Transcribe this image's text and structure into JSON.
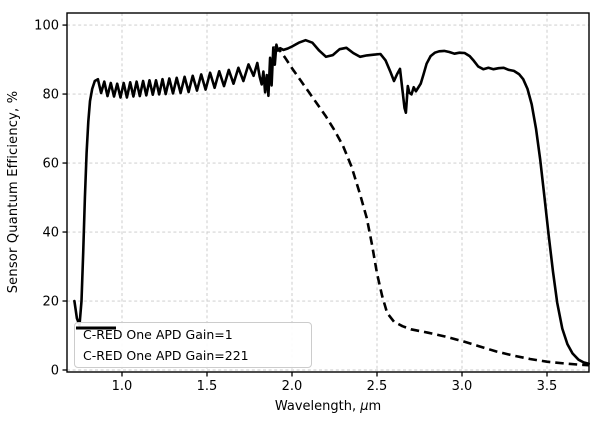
{
  "figure": {
    "background": "#ffffff",
    "axes_frame_color": "#000000",
    "grid_color": "#c9c9c9",
    "line_color": "#000000"
  },
  "axes": {
    "ylabel": "Sensor Quantum Efficiency, %",
    "xlabel_prefix": "Wavelength, ",
    "xlabel_mu": "μ",
    "xlabel_suffix": "m"
  },
  "legend": {
    "entries": [
      {
        "label": "C-RED One APD Gain=1",
        "style": "solid"
      },
      {
        "label": "C-RED One APD Gain=221",
        "style": "dashed"
      }
    ]
  },
  "chart_data": {
    "type": "line",
    "title": "",
    "xlabel": "Wavelength, μm",
    "ylabel": "Sensor Quantum Efficiency, %",
    "xlim": [
      0.6765,
      3.747
    ],
    "ylim": [
      -0.58,
      103.5
    ],
    "xticks": [
      1.0,
      1.5,
      2.0,
      2.5,
      3.0,
      3.5
    ],
    "xtick_labels": [
      "1.0",
      "1.5",
      "2.0",
      "2.5",
      "3.0",
      "3.5"
    ],
    "yticks": [
      0,
      20,
      40,
      60,
      80,
      100
    ],
    "ytick_labels": [
      "0",
      "20",
      "40",
      "60",
      "80",
      "100"
    ],
    "grid": true,
    "grid_style": "dashed",
    "legend_position": "lower left",
    "series": [
      {
        "name": "C-RED One APD Gain=1",
        "style": "solid",
        "color": "#000000",
        "points": [
          [
            0.72,
            20
          ],
          [
            0.735,
            15
          ],
          [
            0.75,
            13
          ],
          [
            0.762,
            20
          ],
          [
            0.772,
            34
          ],
          [
            0.782,
            50
          ],
          [
            0.792,
            63
          ],
          [
            0.802,
            72
          ],
          [
            0.812,
            78
          ],
          [
            0.825,
            81.5
          ],
          [
            0.84,
            83.8
          ],
          [
            0.858,
            84.3
          ],
          [
            0.877,
            80.3
          ],
          [
            0.896,
            83.6
          ],
          [
            0.915,
            79.4
          ],
          [
            0.934,
            83.2
          ],
          [
            0.953,
            79.3
          ],
          [
            0.972,
            83.0
          ],
          [
            0.991,
            79.0
          ],
          [
            1.01,
            83.2
          ],
          [
            1.029,
            79.0
          ],
          [
            1.048,
            83.4
          ],
          [
            1.067,
            79.3
          ],
          [
            1.086,
            83.6
          ],
          [
            1.105,
            79.4
          ],
          [
            1.124,
            83.8
          ],
          [
            1.143,
            79.6
          ],
          [
            1.162,
            84.0
          ],
          [
            1.181,
            79.8
          ],
          [
            1.2,
            84.0
          ],
          [
            1.219,
            79.9
          ],
          [
            1.238,
            84.3
          ],
          [
            1.257,
            80.0
          ],
          [
            1.278,
            84.5
          ],
          [
            1.3,
            80.2
          ],
          [
            1.322,
            84.7
          ],
          [
            1.345,
            80.3
          ],
          [
            1.368,
            85.0
          ],
          [
            1.392,
            80.6
          ],
          [
            1.416,
            85.3
          ],
          [
            1.441,
            81.0
          ],
          [
            1.466,
            85.7
          ],
          [
            1.492,
            81.3
          ],
          [
            1.518,
            86.2
          ],
          [
            1.545,
            81.8
          ],
          [
            1.572,
            86.6
          ],
          [
            1.6,
            82.3
          ],
          [
            1.628,
            87.0
          ],
          [
            1.656,
            83.0
          ],
          [
            1.685,
            87.6
          ],
          [
            1.714,
            83.8
          ],
          [
            1.744,
            88.6
          ],
          [
            1.774,
            85.3
          ],
          [
            1.796,
            89.0
          ],
          [
            1.81,
            85.0
          ],
          [
            1.822,
            82.8
          ],
          [
            1.832,
            86.5
          ],
          [
            1.842,
            80.5
          ],
          [
            1.852,
            85.5
          ],
          [
            1.861,
            79.5
          ],
          [
            1.871,
            90.5
          ],
          [
            1.88,
            82.5
          ],
          [
            1.89,
            93.5
          ],
          [
            1.899,
            88.5
          ],
          [
            1.908,
            94.3
          ],
          [
            1.917,
            92.6
          ],
          [
            1.93,
            93.3
          ],
          [
            1.95,
            92.8
          ],
          [
            1.975,
            93.2
          ],
          [
            2.0,
            93.8
          ],
          [
            2.04,
            94.9
          ],
          [
            2.08,
            95.6
          ],
          [
            2.12,
            94.9
          ],
          [
            2.16,
            92.6
          ],
          [
            2.2,
            90.8
          ],
          [
            2.24,
            91.3
          ],
          [
            2.28,
            93.0
          ],
          [
            2.32,
            93.4
          ],
          [
            2.36,
            91.9
          ],
          [
            2.4,
            90.8
          ],
          [
            2.44,
            91.2
          ],
          [
            2.48,
            91.4
          ],
          [
            2.52,
            91.6
          ],
          [
            2.55,
            89.8
          ],
          [
            2.58,
            86.3
          ],
          [
            2.6,
            83.8
          ],
          [
            2.618,
            85.8
          ],
          [
            2.635,
            87.3
          ],
          [
            2.65,
            81.0
          ],
          [
            2.662,
            76.0
          ],
          [
            2.67,
            74.6
          ],
          [
            2.681,
            82.3
          ],
          [
            2.69,
            80.4
          ],
          [
            2.703,
            79.9
          ],
          [
            2.716,
            82.0
          ],
          [
            2.729,
            80.8
          ],
          [
            2.743,
            81.9
          ],
          [
            2.757,
            83.0
          ],
          [
            2.774,
            85.8
          ],
          [
            2.792,
            88.8
          ],
          [
            2.815,
            91.0
          ],
          [
            2.84,
            92.0
          ],
          [
            2.865,
            92.4
          ],
          [
            2.895,
            92.5
          ],
          [
            2.925,
            92.2
          ],
          [
            2.955,
            91.7
          ],
          [
            2.985,
            92.0
          ],
          [
            3.015,
            91.9
          ],
          [
            3.045,
            91.0
          ],
          [
            3.07,
            89.6
          ],
          [
            3.095,
            88.0
          ],
          [
            3.125,
            87.2
          ],
          [
            3.155,
            87.6
          ],
          [
            3.185,
            87.2
          ],
          [
            3.215,
            87.5
          ],
          [
            3.245,
            87.6
          ],
          [
            3.275,
            87.0
          ],
          [
            3.305,
            86.7
          ],
          [
            3.335,
            85.8
          ],
          [
            3.36,
            84.3
          ],
          [
            3.385,
            81.5
          ],
          [
            3.41,
            77.0
          ],
          [
            3.435,
            70.0
          ],
          [
            3.46,
            61.0
          ],
          [
            3.485,
            50.0
          ],
          [
            3.51,
            39.0
          ],
          [
            3.535,
            28.5
          ],
          [
            3.56,
            19.5
          ],
          [
            3.59,
            12.0
          ],
          [
            3.62,
            7.5
          ],
          [
            3.65,
            4.8
          ],
          [
            3.685,
            3.0
          ],
          [
            3.715,
            2.2
          ],
          [
            3.745,
            1.8
          ]
        ]
      },
      {
        "name": "C-RED One APD Gain=221",
        "style": "dashed",
        "color": "#000000",
        "points": [
          [
            1.9,
            94
          ],
          [
            1.93,
            92.5
          ],
          [
            1.96,
            90.5
          ],
          [
            2.0,
            87.5
          ],
          [
            2.05,
            84
          ],
          [
            2.1,
            80.5
          ],
          [
            2.15,
            77
          ],
          [
            2.2,
            73.5
          ],
          [
            2.25,
            69.5
          ],
          [
            2.3,
            65
          ],
          [
            2.35,
            59
          ],
          [
            2.4,
            51
          ],
          [
            2.44,
            44
          ],
          [
            2.47,
            36.5
          ],
          [
            2.5,
            28
          ],
          [
            2.53,
            21.5
          ],
          [
            2.56,
            16.5
          ],
          [
            2.6,
            14
          ],
          [
            2.65,
            12.7
          ],
          [
            2.7,
            11.8
          ],
          [
            2.8,
            10.8
          ],
          [
            2.9,
            9.7
          ],
          [
            3.0,
            8.4
          ],
          [
            3.1,
            6.9
          ],
          [
            3.2,
            5.4
          ],
          [
            3.3,
            4.2
          ],
          [
            3.4,
            3.2
          ],
          [
            3.5,
            2.4
          ],
          [
            3.6,
            1.9
          ],
          [
            3.7,
            1.5
          ],
          [
            3.745,
            1.4
          ]
        ]
      }
    ]
  }
}
